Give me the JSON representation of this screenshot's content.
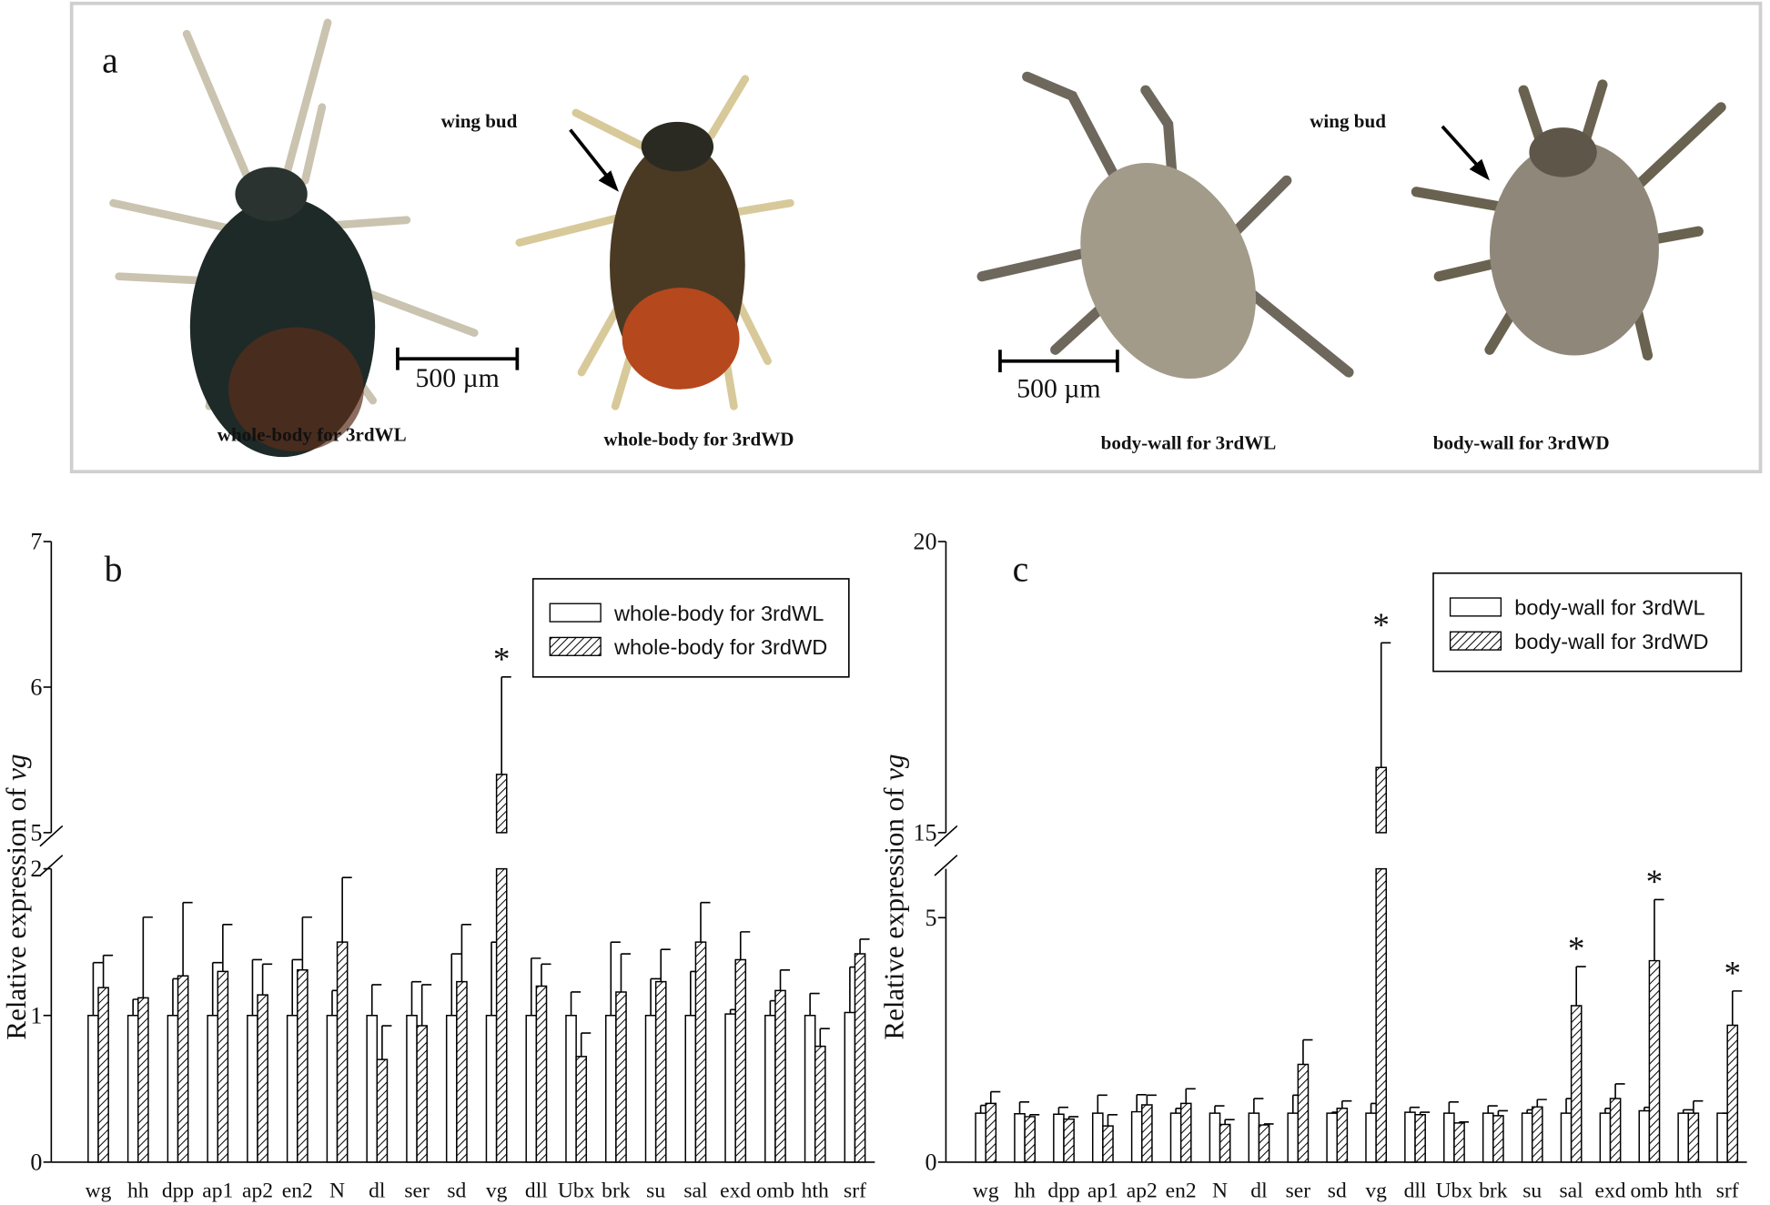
{
  "panel_a": {
    "label": "a",
    "captions": [
      "whole-body  for 3rdWL",
      "whole-body  for 3rdWD",
      "body-wall  for 3rdWL",
      "body-wall for 3rdWD"
    ],
    "annotations": [
      "wing  bud",
      "wing  bud"
    ],
    "scale_bars": [
      "500 µm",
      "500 µm"
    ]
  },
  "chart_data": [
    {
      "type": "bar",
      "panel_label": "b",
      "ylabel": {
        "text": "Relative expression of ",
        "italic": "vg"
      },
      "categories": [
        "wg",
        "hh",
        "dpp",
        "ap1",
        "ap2",
        "en2",
        "N",
        "dl",
        "ser",
        "sd",
        "vg",
        "dll",
        "Ubx",
        "brk",
        "su",
        "sal",
        "exd",
        "omb",
        "hth",
        "srf"
      ],
      "series": [
        {
          "name": "whole-body for 3rdWL",
          "color": "#ffffff",
          "values": [
            1.0,
            1.0,
            1.0,
            1.0,
            1.0,
            1.0,
            1.0,
            1.0,
            1.0,
            1.0,
            1.0,
            1.0,
            1.0,
            1.0,
            1.0,
            1.0,
            1.01,
            1.0,
            1.0,
            1.02
          ],
          "errors": [
            0.36,
            0.11,
            0.25,
            0.36,
            0.38,
            0.38,
            0.17,
            0.21,
            0.23,
            0.42,
            0.5,
            0.39,
            0.16,
            0.5,
            0.25,
            0.3,
            0.03,
            0.1,
            0.15,
            0.31
          ]
        },
        {
          "name": "whole-body for 3rdWD",
          "color": "#000000",
          "pattern": "hatch",
          "values": [
            1.19,
            1.12,
            1.27,
            1.3,
            1.14,
            1.31,
            1.5,
            0.7,
            0.93,
            1.23,
            5.4,
            1.2,
            0.72,
            1.16,
            1.23,
            1.5,
            1.38,
            1.17,
            0.79,
            1.42
          ],
          "errors": [
            0.22,
            0.55,
            0.5,
            0.32,
            0.21,
            0.36,
            0.44,
            0.23,
            0.28,
            0.39,
            0.67,
            0.15,
            0.16,
            0.26,
            0.22,
            0.27,
            0.19,
            0.14,
            0.12,
            0.1
          ],
          "significant": [
            false,
            false,
            false,
            false,
            false,
            false,
            false,
            false,
            false,
            false,
            true,
            false,
            false,
            false,
            false,
            false,
            false,
            false,
            false,
            false
          ]
        }
      ],
      "significance_mark": "*",
      "ylim": [
        0,
        7
      ],
      "ybreak": [
        2,
        5
      ],
      "yticks": [
        0,
        1,
        2,
        5,
        6,
        7
      ],
      "legend": "upper right"
    },
    {
      "type": "bar",
      "panel_label": "c",
      "ylabel": {
        "text": "Relative expression of ",
        "italic": "vg"
      },
      "categories": [
        "wg",
        "hh",
        "dpp",
        "ap1",
        "ap2",
        "en2",
        "N",
        "dl",
        "ser",
        "sd",
        "vg",
        "dll",
        "Ubx",
        "brk",
        "su",
        "sal",
        "exd",
        "omb",
        "hth",
        "srf"
      ],
      "series": [
        {
          "name": "body-wall for 3rdWL",
          "color": "#ffffff",
          "values": [
            1.0,
            0.99,
            0.98,
            1.0,
            1.03,
            1.0,
            1.0,
            1.0,
            1.0,
            1.0,
            1.0,
            1.02,
            1.0,
            1.0,
            1.0,
            1.0,
            1.0,
            1.05,
            1.0,
            1.0
          ],
          "errors": [
            0.16,
            0.24,
            0.14,
            0.37,
            0.35,
            0.1,
            0.15,
            0.3,
            0.37,
            0.02,
            0.2,
            0.1,
            0.23,
            0.15,
            0.07,
            0.3,
            0.1,
            0.07,
            0.07,
            0.0
          ]
        },
        {
          "name": "body-wall for 3rdWD",
          "color": "#000000",
          "pattern": "hatch",
          "values": [
            1.2,
            0.93,
            0.88,
            0.74,
            1.17,
            1.2,
            0.77,
            0.76,
            2.0,
            1.1,
            16.12,
            0.97,
            0.8,
            0.95,
            1.13,
            3.2,
            1.3,
            4.12,
            1.0,
            2.8
          ],
          "errors": [
            0.24,
            0.04,
            0.05,
            0.23,
            0.2,
            0.3,
            0.1,
            0.02,
            0.5,
            0.15,
            2.14,
            0.05,
            0.02,
            0.1,
            0.15,
            0.8,
            0.3,
            1.25,
            0.25,
            0.7
          ],
          "significant": [
            false,
            false,
            false,
            false,
            false,
            false,
            false,
            false,
            false,
            false,
            true,
            false,
            false,
            false,
            false,
            true,
            false,
            true,
            false,
            true
          ]
        }
      ],
      "significance_mark": "*",
      "ylim": [
        0,
        20
      ],
      "ybreak": [
        6,
        15
      ],
      "yticks": [
        0,
        5,
        15,
        20
      ],
      "legend": "upper right"
    }
  ]
}
